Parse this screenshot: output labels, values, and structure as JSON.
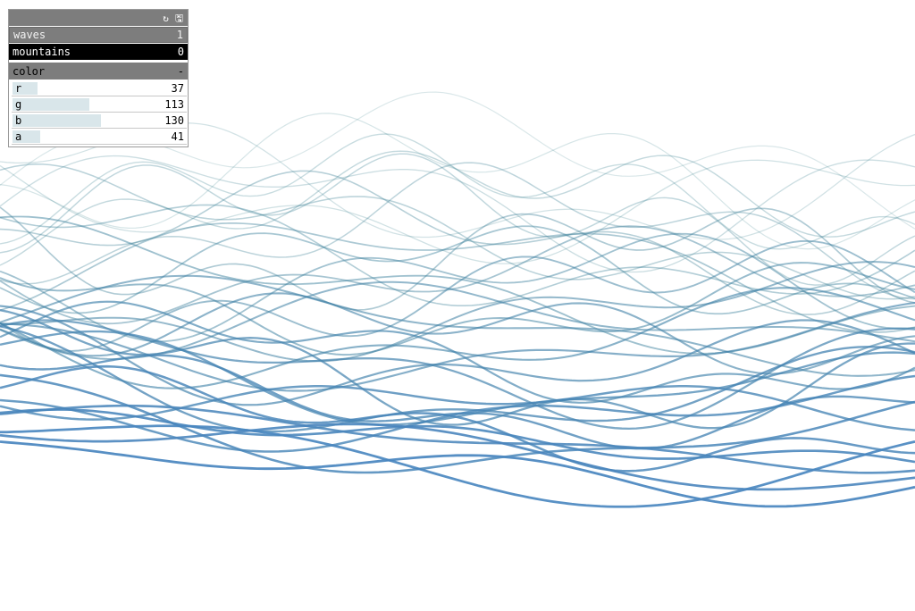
{
  "panel": {
    "icons": [
      "refresh-icon",
      "save-icon"
    ],
    "toggles": [
      {
        "label": "waves",
        "value": "1",
        "active": false
      },
      {
        "label": "mountains",
        "value": "0",
        "active": true
      }
    ],
    "color_folder": {
      "label": "color",
      "collapse_symbol": "-",
      "sliders": [
        {
          "label": "r",
          "value": "37",
          "fraction": 0.145
        },
        {
          "label": "g",
          "value": "113",
          "fraction": 0.443
        },
        {
          "label": "b",
          "value": "130",
          "fraction": 0.51
        },
        {
          "label": "a",
          "value": "41",
          "fraction": 0.161
        }
      ]
    }
  },
  "scene": {
    "line_color_start": "#4a86c0",
    "line_color_end": "#2f7a80"
  }
}
